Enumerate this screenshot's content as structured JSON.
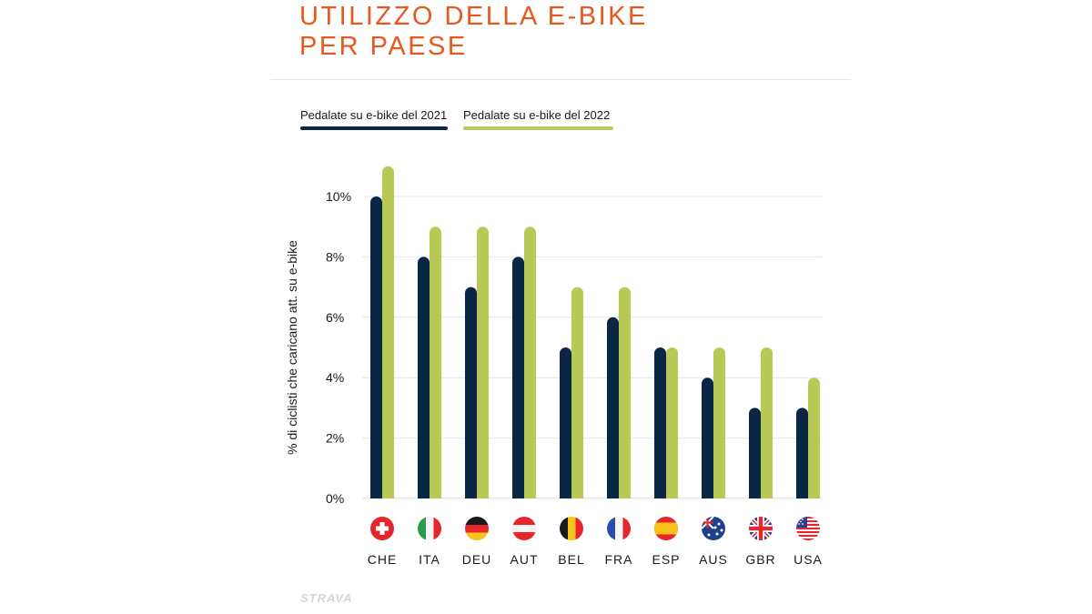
{
  "title": {
    "line1": "UTILIZZO DELLA E-BIKE",
    "line2": "PER PAESE"
  },
  "legend": [
    {
      "label": "Pedalate su e-bike del 2021",
      "color": "#0b2545"
    },
    {
      "label": "Pedalate su e-bike del 2022",
      "color": "#b9c955"
    }
  ],
  "branding": {
    "logo_text": "STRAVA"
  },
  "chart_data": {
    "type": "bar",
    "title": "UTILIZZO DELLA E-BIKE PER PAESE",
    "xlabel": "",
    "ylabel": "% di ciclisti che caricano att. su e-bike",
    "ylim": [
      0,
      10
    ],
    "yticks": [
      0,
      2,
      4,
      6,
      8,
      10
    ],
    "ytick_labels": [
      "0%",
      "2%",
      "4%",
      "6%",
      "8%",
      "10%"
    ],
    "categories": [
      "CHE",
      "ITA",
      "DEU",
      "AUT",
      "BEL",
      "FRA",
      "ESP",
      "AUS",
      "GBR",
      "USA"
    ],
    "category_flags": [
      "switzerland-flag-icon",
      "italy-flag-icon",
      "germany-flag-icon",
      "austria-flag-icon",
      "belgium-flag-icon",
      "france-flag-icon",
      "spain-flag-icon",
      "australia-flag-icon",
      "uk-flag-icon",
      "usa-flag-icon"
    ],
    "series": [
      {
        "name": "Pedalate su e-bike del 2021",
        "color": "#0b2545",
        "values": [
          10,
          8,
          7,
          8,
          5,
          6,
          5,
          4,
          3,
          3
        ]
      },
      {
        "name": "Pedalate su e-bike del 2022",
        "color": "#b9c955",
        "values": [
          11,
          9,
          9,
          9,
          7,
          7,
          5,
          5,
          5,
          4
        ]
      }
    ],
    "grid": true,
    "legend_position": "top-left"
  }
}
